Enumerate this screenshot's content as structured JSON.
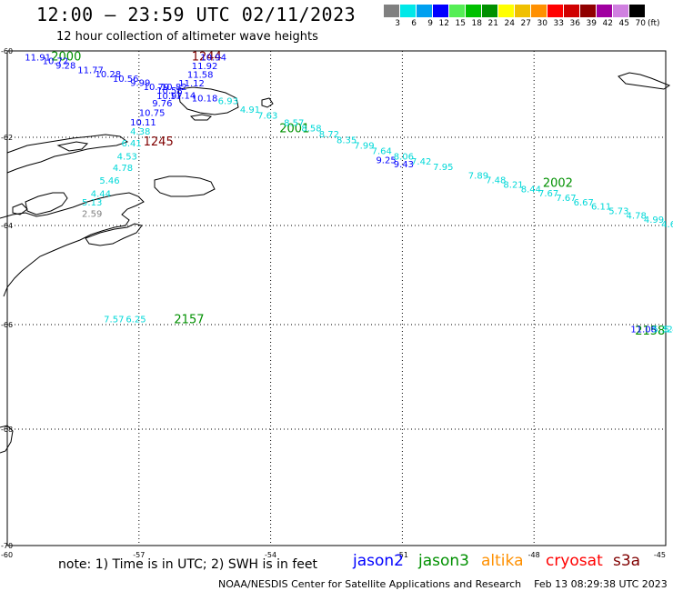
{
  "title": "12:00 – 23:59 UTC 02/11/2023",
  "subtitle": "12 hour collection of altimeter wave heights",
  "legend": {
    "bins": [
      {
        "label": "3",
        "color": "#808080"
      },
      {
        "label": "6",
        "color": "#00e8e8"
      },
      {
        "label": "9",
        "color": "#00a0f0"
      },
      {
        "label": "12",
        "color": "#0000ff"
      },
      {
        "label": "15",
        "color": "#55ee55"
      },
      {
        "label": "18",
        "color": "#00c000"
      },
      {
        "label": "21",
        "color": "#009000"
      },
      {
        "label": "24",
        "color": "#ffff00"
      },
      {
        "label": "27",
        "color": "#f0c000"
      },
      {
        "label": "30",
        "color": "#ff9000"
      },
      {
        "label": "33",
        "color": "#ff0000"
      },
      {
        "label": "36",
        "color": "#d00000"
      },
      {
        "label": "39",
        "color": "#900000"
      },
      {
        "label": "42",
        "color": "#a000a0"
      },
      {
        "label": "45",
        "color": "#d080e0"
      },
      {
        "label": "70",
        "color": "#000000"
      }
    ],
    "unit": "(ft)"
  },
  "axes": {
    "lat_labels": [
      "-60",
      "-62",
      "-64",
      "-66",
      "-68",
      "-70"
    ],
    "lon_labels": [
      "-60",
      "-57",
      "-54",
      "-51",
      "-48",
      "-45"
    ]
  },
  "chart_data": {
    "type": "scatter",
    "title": "12:00 – 23:59 UTC 02/11/2023",
    "subtitle": "12 hour collection of altimeter wave heights",
    "xlabel": "",
    "ylabel": "",
    "xlim": [
      -60,
      -45
    ],
    "ylim": [
      -70,
      -60
    ],
    "units": "ft",
    "time_labels": [
      {
        "label": "1244",
        "lon": -55.8,
        "lat": -60.12,
        "color": "#800000"
      },
      {
        "label": "1245",
        "lon": -56.9,
        "lat": -62.08,
        "color": "#800000"
      },
      {
        "label": "2000",
        "lon": -59.0,
        "lat": -60.12,
        "color": "#009000"
      },
      {
        "label": "2001",
        "lon": -53.8,
        "lat": -61.78,
        "color": "#009000"
      },
      {
        "label": "2002",
        "lon": -47.8,
        "lat": -63.02,
        "color": "#009000"
      },
      {
        "label": "2157",
        "lon": -56.2,
        "lat": -65.88,
        "color": "#009000"
      },
      {
        "label": "2158",
        "lon": -45.7,
        "lat": -66.1,
        "color": "#009000"
      }
    ],
    "series": [
      {
        "name": "jason2",
        "color": "#0000ff",
        "points": [
          {
            "lon": -59.6,
            "lat": -60.14,
            "swh": 11.91
          },
          {
            "lon": -59.2,
            "lat": -60.22,
            "swh": 10.72
          },
          {
            "lon": -58.9,
            "lat": -60.33,
            "swh": 9.28
          },
          {
            "lon": -58.4,
            "lat": -60.43,
            "swh": 11.77
          },
          {
            "lon": -58.0,
            "lat": -60.53,
            "swh": 10.28
          },
          {
            "lon": -57.6,
            "lat": -60.63,
            "swh": 10.56
          },
          {
            "lon": -57.2,
            "lat": -60.73,
            "swh": 9.99
          },
          {
            "lon": -56.9,
            "lat": -60.82,
            "swh": 10.79
          },
          {
            "lon": -56.5,
            "lat": -60.82,
            "swh": 10.82
          },
          {
            "lon": -56.6,
            "lat": -60.9,
            "swh": 10.58
          },
          {
            "lon": -56.3,
            "lat": -61.02,
            "swh": 11.14
          },
          {
            "lon": -56.6,
            "lat": -61.03,
            "swh": 10.97
          },
          {
            "lon": -56.7,
            "lat": -61.2,
            "swh": 9.76
          },
          {
            "lon": -55.8,
            "lat": -61.08,
            "swh": 10.18
          },
          {
            "lon": -57.0,
            "lat": -61.42,
            "swh": 10.75
          },
          {
            "lon": -57.2,
            "lat": -61.64,
            "swh": 10.11
          },
          {
            "lon": -55.6,
            "lat": -60.14,
            "swh": 10.94
          },
          {
            "lon": -55.8,
            "lat": -60.34,
            "swh": 11.92
          },
          {
            "lon": -55.9,
            "lat": -60.54,
            "swh": 11.58
          },
          {
            "lon": -56.1,
            "lat": -60.74,
            "swh": 11.12
          },
          {
            "lon": -51.6,
            "lat": -62.5,
            "swh": 9.25
          },
          {
            "lon": -51.2,
            "lat": -62.6,
            "swh": 9.43
          },
          {
            "lon": -45.8,
            "lat": -66.08,
            "swh": 11.08
          }
        ]
      },
      {
        "name": "jason3",
        "color": "#00d8d8",
        "points": [
          {
            "lon": -54.7,
            "lat": -61.35,
            "swh": 4.91
          },
          {
            "lon": -54.3,
            "lat": -61.48,
            "swh": 7.63
          },
          {
            "lon": -53.7,
            "lat": -61.65,
            "swh": 8.57
          },
          {
            "lon": -53.3,
            "lat": -61.78,
            "swh": 8.58
          },
          {
            "lon": -52.9,
            "lat": -61.92,
            "swh": 8.72
          },
          {
            "lon": -52.5,
            "lat": -62.05,
            "swh": 8.35
          },
          {
            "lon": -52.1,
            "lat": -62.18,
            "swh": 7.99
          },
          {
            "lon": -51.7,
            "lat": -62.3,
            "swh": 7.64
          },
          {
            "lon": -51.2,
            "lat": -62.42,
            "swh": 8.06
          },
          {
            "lon": -50.8,
            "lat": -62.54,
            "swh": 7.42
          },
          {
            "lon": -50.3,
            "lat": -62.66,
            "swh": 7.95
          },
          {
            "lon": -49.5,
            "lat": -62.86,
            "swh": 7.89
          },
          {
            "lon": -49.1,
            "lat": -62.96,
            "swh": 7.48
          },
          {
            "lon": -48.7,
            "lat": -63.06,
            "swh": 8.21
          },
          {
            "lon": -48.3,
            "lat": -63.16,
            "swh": 8.44
          },
          {
            "lon": -47.9,
            "lat": -63.26,
            "swh": 7.67
          },
          {
            "lon": -47.5,
            "lat": -63.36,
            "swh": 7.67
          },
          {
            "lon": -47.1,
            "lat": -63.46,
            "swh": 6.67
          },
          {
            "lon": -46.7,
            "lat": -63.56,
            "swh": 6.11
          },
          {
            "lon": -46.3,
            "lat": -63.66,
            "swh": 5.73
          },
          {
            "lon": -45.9,
            "lat": -63.76,
            "swh": 4.78
          },
          {
            "lon": -45.5,
            "lat": -63.86,
            "swh": 4.99
          },
          {
            "lon": -45.1,
            "lat": -63.96,
            "swh": 4.68
          },
          {
            "lon": -44.8,
            "lat": -64.06,
            "swh": 4.5
          },
          {
            "lon": -55.2,
            "lat": -61.15,
            "swh": 6.93
          },
          {
            "lon": -57.2,
            "lat": -61.85,
            "swh": 4.38
          },
          {
            "lon": -57.4,
            "lat": -62.12,
            "swh": 6.41
          },
          {
            "lon": -57.5,
            "lat": -62.42,
            "swh": 4.53
          },
          {
            "lon": -57.6,
            "lat": -62.68,
            "swh": 4.78
          },
          {
            "lon": -57.9,
            "lat": -62.97,
            "swh": 5.46
          },
          {
            "lon": -58.1,
            "lat": -63.27,
            "swh": 4.44
          },
          {
            "lon": -58.3,
            "lat": -63.46,
            "swh": 5.13
          },
          {
            "lon": -57.8,
            "lat": -65.88,
            "swh": 7.57
          },
          {
            "lon": -57.3,
            "lat": -65.88,
            "swh": 6.25
          },
          {
            "lon": -45.3,
            "lat": -66.08,
            "swh": 5.32
          },
          {
            "lon": -45.05,
            "lat": -66.08,
            "swh": 5.48
          }
        ]
      },
      {
        "name": "grey",
        "color": "#808080",
        "points": [
          {
            "lon": -58.3,
            "lat": -63.72,
            "swh": 2.59
          }
        ]
      }
    ],
    "satellite_legend": [
      {
        "name": "jason2",
        "color": "#0000ff"
      },
      {
        "name": "jason3",
        "color": "#009000"
      },
      {
        "name": "altika",
        "color": "#ff9000"
      },
      {
        "name": "cryosat",
        "color": "#ff0000"
      },
      {
        "name": "s3a",
        "color": "#800000"
      }
    ]
  },
  "note": "note:  1) Time is in UTC;  2) SWH is in feet",
  "credit": "NOAA/NESDIS Center for Satellite Applications and Research    Feb 13 08:29:38 UTC 2023"
}
